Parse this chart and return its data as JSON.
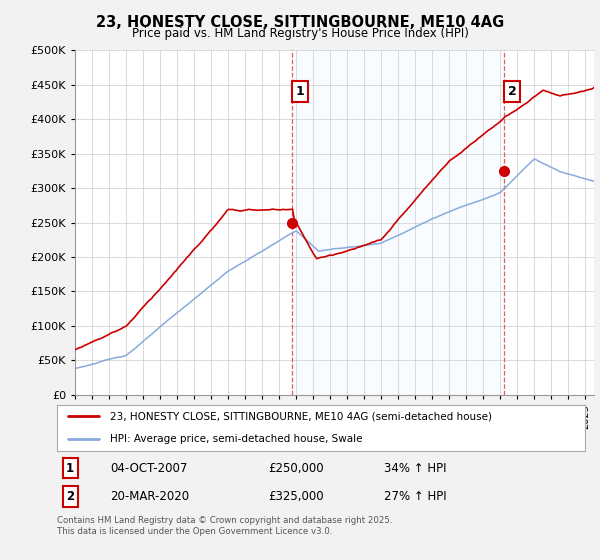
{
  "title": "23, HONESTY CLOSE, SITTINGBOURNE, ME10 4AG",
  "subtitle": "Price paid vs. HM Land Registry's House Price Index (HPI)",
  "legend_line1": "23, HONESTY CLOSE, SITTINGBOURNE, ME10 4AG (semi-detached house)",
  "legend_line2": "HPI: Average price, semi-detached house, Swale",
  "footnote": "Contains HM Land Registry data © Crown copyright and database right 2025.\nThis data is licensed under the Open Government Licence v3.0.",
  "sale1_label": "1",
  "sale1_date": "04-OCT-2007",
  "sale1_price": "£250,000",
  "sale1_hpi": "34% ↑ HPI",
  "sale2_label": "2",
  "sale2_date": "20-MAR-2020",
  "sale2_price": "£325,000",
  "sale2_hpi": "27% ↑ HPI",
  "red_color": "#cc0000",
  "blue_color": "#88aadd",
  "blue_fill": "#ddeeff",
  "dashed_color": "#dd4444",
  "background_color": "#f2f2f2",
  "plot_background": "#ffffff",
  "ylim": [
    0,
    500000
  ],
  "yticks": [
    0,
    50000,
    100000,
    150000,
    200000,
    250000,
    300000,
    350000,
    400000,
    450000,
    500000
  ],
  "sale1_x": 2007.75,
  "sale1_y": 250000,
  "sale2_x": 2020.22,
  "sale2_y": 325000,
  "xlim_left": 1995,
  "xlim_right": 2025.5
}
